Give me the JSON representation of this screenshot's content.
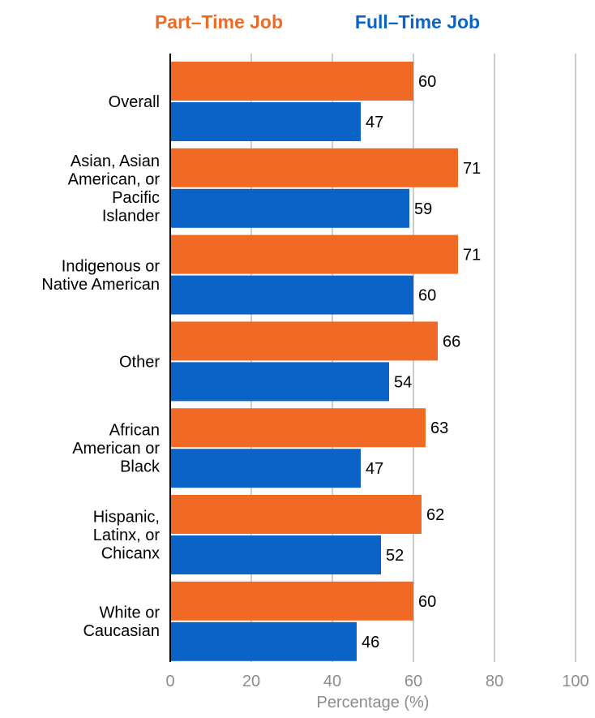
{
  "colors": {
    "part_time": "#F06A26",
    "full_time": "#0B63C7",
    "grid": "#cccccc",
    "axis": "#000000",
    "tick_text": "#8c8c8c",
    "label_text": "#000000"
  },
  "chart_data": {
    "type": "bar",
    "orientation": "horizontal",
    "title": "",
    "legend_position": "top",
    "categories": [
      "Overall",
      "Asian, Asian American, or Pacific Islander",
      "Indigenous or Native American",
      "Other",
      "African American or Black",
      "Hispanic, Latinx, or Chicanx",
      "White or Caucasian"
    ],
    "category_label_lines": [
      [
        "Overall"
      ],
      [
        "Asian, Asian",
        "American, or",
        "Pacific",
        "Islander"
      ],
      [
        "Indigenous or",
        "Native American"
      ],
      [
        "Other"
      ],
      [
        "African",
        "American or",
        "Black"
      ],
      [
        "Hispanic,",
        "Latinx, or",
        "Chicanx"
      ],
      [
        "White or",
        "Caucasian"
      ]
    ],
    "series": [
      {
        "name": "Part–Time Job",
        "color_key": "part_time",
        "values": [
          60,
          71,
          71,
          66,
          63,
          62,
          60
        ]
      },
      {
        "name": "Full–Time Job",
        "color_key": "full_time",
        "values": [
          47,
          59,
          60,
          54,
          47,
          52,
          46
        ]
      }
    ],
    "xlabel": "Percentage (%)",
    "ylabel": "",
    "xlim": [
      0,
      100
    ],
    "x_ticks": [
      0,
      20,
      40,
      60,
      80,
      100
    ],
    "grid": true
  }
}
